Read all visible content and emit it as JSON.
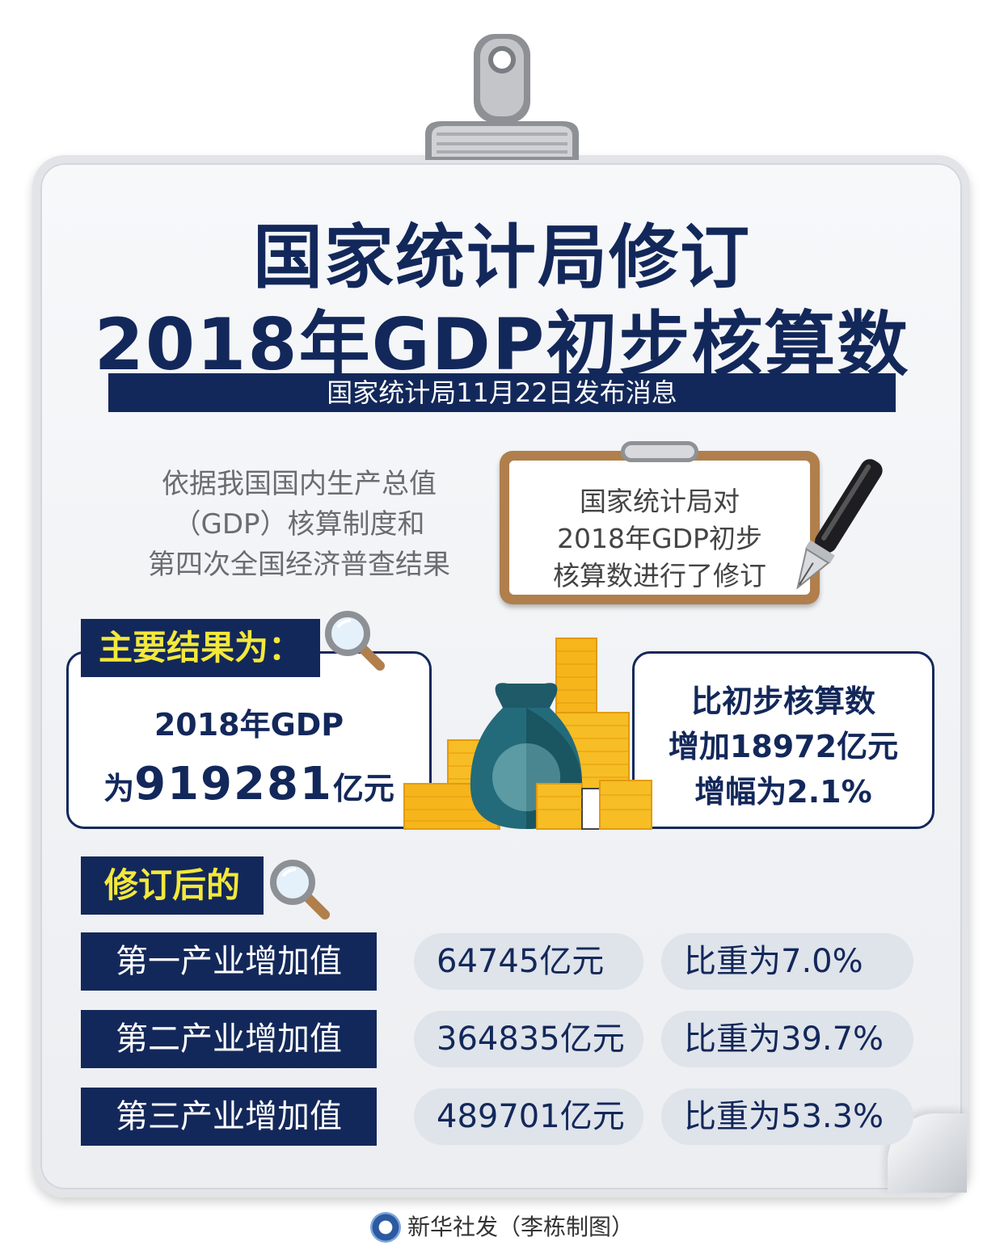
{
  "title": {
    "line1": "国家统计局修订",
    "line2": "2018年GDP初步核算数"
  },
  "subtitle": "国家统计局11月22日发布消息",
  "basis": [
    "依据我国国内生产总值",
    "（GDP）核算制度和",
    "第四次全国经济普查结果"
  ],
  "note": [
    "国家统计局对",
    "2018年GDP初步",
    "核算数进行了修订"
  ],
  "main_results": {
    "label": "主要结果为：",
    "gdp_prefix": "2018年GDP",
    "gdp_is": "为",
    "gdp_value": "919281",
    "gdp_unit": "亿元",
    "compare": [
      "比初步核算数",
      "增加18972亿元",
      "增幅为2.1%"
    ]
  },
  "revised": {
    "label": "修订后的",
    "rows": [
      {
        "name": "第一产业增加值",
        "value": "64745亿元",
        "share": "比重为7.0%"
      },
      {
        "name": "第二产业增加值",
        "value": "364835亿元",
        "share": "比重为39.7%"
      },
      {
        "name": "第三产业增加值",
        "value": "489701亿元",
        "share": "比重为53.3%"
      }
    ]
  },
  "footer": "新华社发（李栋制图）",
  "colors": {
    "navy": "#13285a",
    "yellow": "#f4e83a",
    "pill": "#dfe3ea",
    "gold": "#f6b51b"
  }
}
